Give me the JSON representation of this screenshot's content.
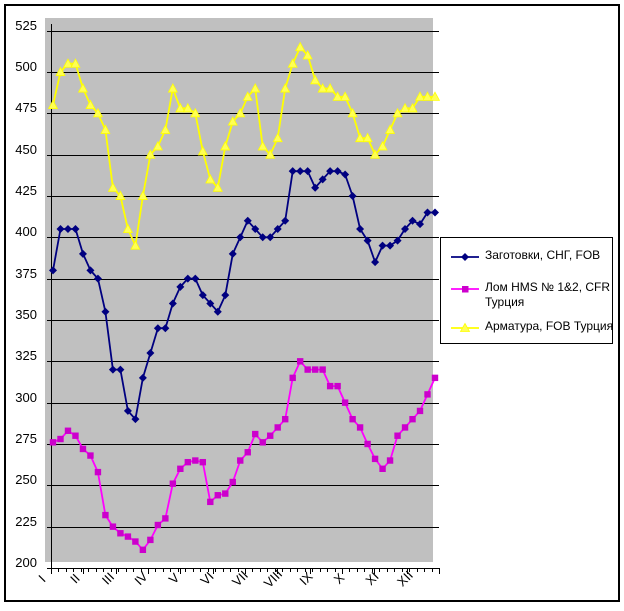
{
  "chart_data": {
    "type": "line",
    "title": "",
    "plot_bg": "#c0c0c0",
    "grid_color": "#000000",
    "axis_color": "#000000",
    "outer_border_color": "#000000",
    "x_axis": {
      "labels": [
        "I",
        "II",
        "III",
        "IV",
        "V",
        "VI",
        "VII",
        "VIII",
        "IX",
        "X",
        "XI",
        "XII"
      ],
      "points_per_series": 52,
      "minor_ticks": 53,
      "major_ticks": 13
    },
    "y_axis": {
      "min": 200,
      "max": 525,
      "step": 25,
      "tick_labels": [
        "525",
        "500",
        "475",
        "450",
        "425",
        "400",
        "375",
        "350",
        "325",
        "300",
        "275",
        "250",
        "225",
        "200"
      ]
    },
    "legend": {
      "position": "right"
    },
    "series": [
      {
        "name": "Заготовки, СНГ, FOB",
        "color": "#000080",
        "marker": "diamond",
        "marker_color": "#000080",
        "values": [
          380,
          405,
          405,
          405,
          390,
          380,
          375,
          355,
          320,
          320,
          295,
          290,
          315,
          330,
          345,
          345,
          360,
          370,
          375,
          375,
          365,
          360,
          355,
          365,
          390,
          400,
          410,
          405,
          400,
          400,
          405,
          410,
          440,
          440,
          440,
          430,
          435,
          440,
          440,
          438,
          425,
          405,
          398,
          385,
          395,
          395,
          398,
          405,
          410,
          408,
          415,
          415
        ]
      },
      {
        "name": "Лом HMS № 1&2, CFR Турция",
        "color": "#ff00ff",
        "marker": "square",
        "marker_color": "#cc00cc",
        "values": [
          276,
          278,
          283,
          280,
          272,
          268,
          258,
          232,
          225,
          221,
          219,
          216,
          211,
          217,
          226,
          230,
          251,
          260,
          264,
          265,
          264,
          240,
          244,
          245,
          252,
          265,
          270,
          281,
          276,
          280,
          285,
          290,
          315,
          325,
          320,
          320,
          320,
          310,
          310,
          300,
          290,
          285,
          275,
          266,
          260,
          265,
          280,
          285,
          290,
          295,
          305,
          315
        ]
      },
      {
        "name": "Арматура, FOB Турция",
        "color": "#ffff00",
        "marker": "triangle",
        "marker_color": "#ffff55",
        "values": [
          480,
          500,
          505,
          505,
          490,
          480,
          475,
          465,
          430,
          425,
          405,
          395,
          425,
          450,
          455,
          465,
          490,
          478,
          478,
          475,
          452,
          435,
          430,
          455,
          470,
          475,
          485,
          490,
          455,
          450,
          460,
          490,
          505,
          515,
          510,
          495,
          490,
          490,
          485,
          485,
          475,
          460,
          460,
          450,
          455,
          465,
          475,
          478,
          478,
          485,
          485,
          485
        ]
      }
    ]
  },
  "layout_text": {}
}
